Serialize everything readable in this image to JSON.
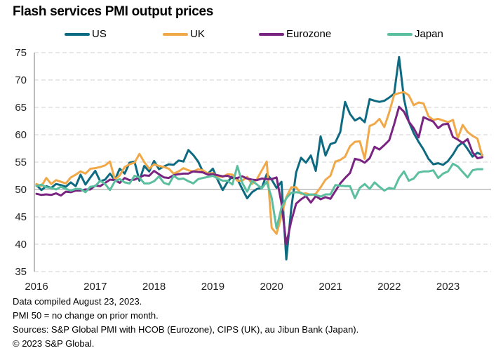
{
  "chart_data": {
    "type": "line",
    "title": "Flash services PMI output prices",
    "xlabel": "",
    "ylabel": "",
    "ylim": [
      35,
      75
    ],
    "yticks": [
      35,
      40,
      45,
      50,
      55,
      60,
      65,
      70,
      75
    ],
    "xtick_labels": [
      "2016",
      "2017",
      "2018",
      "2019",
      "2020",
      "2021",
      "2022",
      "2023"
    ],
    "x_start": "2016-01",
    "x_end": "2023-08",
    "frequency": "monthly",
    "reference_line": 50,
    "grid": "horizontal dashed",
    "legend_position": "top",
    "series": [
      {
        "name": "US",
        "color": "#0e6a80",
        "values": [
          50.8,
          49.9,
          50.6,
          50.3,
          51.0,
          50.8,
          50.5,
          51.3,
          50.6,
          52.7,
          50.9,
          52.2,
          53.4,
          51.5,
          51.8,
          52.9,
          51.7,
          53.8,
          52.9,
          54.9,
          55.1,
          51.6,
          54.3,
          53.3,
          55.2,
          53.7,
          54.2,
          54.6,
          54.5,
          55.3,
          55.1,
          57.2,
          56.3,
          55.1,
          53.2,
          52.9,
          53.8,
          51.7,
          49.9,
          51.4,
          52.4,
          51.9,
          50.1,
          48.4,
          49.5,
          50.1,
          50.3,
          52.8,
          51.8,
          50.3,
          51.4,
          37.2,
          46.5,
          53.1,
          55.8,
          54.9,
          56.2,
          53.4,
          59.7,
          56.2,
          58.3,
          58.6,
          60.5,
          66.0,
          63.8,
          62.6,
          63.1,
          62.3,
          66.5,
          66.2,
          66.0,
          66.2,
          66.8,
          67.5,
          74.2,
          66.6,
          62.4,
          60.3,
          58.7,
          57.3,
          55.6,
          54.6,
          54.8,
          54.5,
          55.2,
          56.4,
          57.9,
          58.6,
          57.4,
          56.0,
          56.7,
          56.3
        ]
      },
      {
        "name": "UK",
        "color": "#f0a848",
        "values": [
          51.0,
          50.6,
          52.1,
          51.0,
          51.7,
          51.4,
          51.1,
          52.2,
          52.7,
          53.3,
          52.9,
          53.8,
          53.9,
          54.1,
          54.4,
          55.1,
          51.8,
          52.6,
          54.1,
          54.6,
          54.9,
          56.5,
          55.0,
          53.8,
          54.6,
          54.3,
          54.1,
          53.8,
          52.9,
          53.3,
          53.9,
          53.5,
          53.3,
          53.7,
          53.5,
          52.9,
          53.0,
          52.4,
          52.3,
          52.8,
          52.7,
          51.6,
          51.6,
          52.3,
          51.0,
          51.9,
          53.5,
          55.1,
          43.0,
          41.9,
          45.2,
          48.6,
          50.4,
          50.4,
          49.2,
          49.3,
          49.0,
          49.2,
          50.4,
          51.8,
          52.5,
          55.1,
          55.4,
          56.0,
          57.9,
          58.7,
          58.8,
          55.6,
          61.6,
          62.0,
          62.9,
          61.4,
          64.1,
          67.3,
          67.6,
          67.8,
          67.2,
          65.4,
          65.9,
          65.7,
          63.4,
          62.7,
          62.9,
          62.6,
          62.3,
          62.7,
          59.4,
          61.8,
          60.5,
          59.8,
          59.3,
          56.0
        ]
      },
      {
        "name": "Eurozone",
        "color": "#7a2482",
        "values": [
          49.2,
          49.0,
          49.1,
          49.0,
          49.3,
          48.9,
          49.6,
          49.5,
          49.8,
          49.8,
          50.0,
          50.0,
          50.7,
          50.6,
          51.2,
          51.8,
          51.7,
          51.2,
          52.1,
          51.7,
          51.8,
          52.2,
          52.6,
          52.5,
          53.4,
          52.8,
          52.2,
          52.1,
          52.6,
          52.8,
          52.9,
          52.9,
          53.3,
          53.2,
          53.1,
          52.7,
          52.8,
          52.6,
          52.4,
          52.5,
          52.1,
          52.1,
          52.4,
          52.0,
          51.8,
          51.7,
          52.0,
          51.9,
          51.9,
          52.2,
          47.5,
          40.0,
          44.2,
          47.4,
          48.2,
          48.8,
          47.6,
          48.8,
          48.2,
          48.6,
          48.3,
          49.7,
          51.1,
          52.1,
          53.0,
          55.6,
          55.4,
          54.9,
          55.7,
          57.8,
          57.3,
          58.1,
          59.0,
          61.9,
          65.1,
          64.2,
          62.4,
          61.2,
          59.5,
          63.2,
          62.8,
          62.4,
          61.2,
          61.9,
          62.0,
          59.6,
          59.1,
          58.5,
          59.2,
          56.8,
          55.7,
          55.9
        ]
      },
      {
        "name": "Japan",
        "color": "#5bbf9f",
        "values": [
          50.6,
          50.9,
          50.4,
          50.3,
          50.0,
          50.5,
          50.1,
          49.8,
          50.1,
          50.1,
          49.5,
          50.5,
          50.6,
          51.6,
          51.0,
          49.9,
          51.5,
          51.9,
          51.3,
          51.1,
          52.5,
          52.2,
          51.1,
          51.1,
          51.5,
          52.4,
          51.2,
          50.9,
          52.5,
          51.9,
          52.0,
          51.5,
          51.1,
          51.9,
          52.1,
          52.3,
          52.5,
          52.0,
          51.6,
          51.6,
          50.9,
          54.3,
          51.2,
          49.6,
          51.6,
          50.9,
          50.2,
          51.4,
          48.5,
          42.9,
          46.7,
          48.4,
          49.4,
          49.5,
          49.4,
          48.9,
          49.1,
          49.0,
          48.7,
          49.1,
          49.1,
          50.8,
          50.7,
          50.6,
          50.6,
          48.4,
          50.3,
          51.0,
          50.1,
          51.3,
          50.5,
          49.8,
          50.3,
          50.1,
          52.1,
          53.3,
          51.6,
          52.0,
          53.1,
          53.3,
          53.3,
          53.5,
          52.1,
          52.9,
          53.3,
          54.7,
          54.2,
          53.2,
          52.2,
          53.5,
          53.7,
          53.7
        ]
      }
    ]
  },
  "legend": {
    "items": [
      {
        "label": "US",
        "color": "#0e6a80"
      },
      {
        "label": "UK",
        "color": "#f0a848"
      },
      {
        "label": "Eurozone",
        "color": "#7a2482"
      },
      {
        "label": "Japan",
        "color": "#5bbf9f"
      }
    ]
  },
  "footer": {
    "line1": "Data compiled August 23, 2023.",
    "line2": "PMI 50 = no change on prior month.",
    "line3": "Sources: S&P Global PMI with HCOB (Eurozone), CIPS (UK), au Jibun Bank (Japan).",
    "line4": "© 2023 S&P Global."
  }
}
